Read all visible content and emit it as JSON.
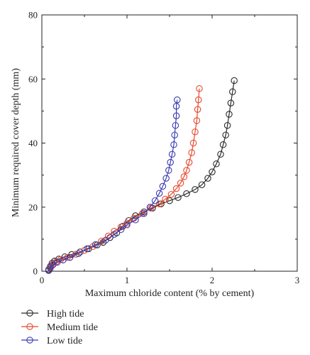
{
  "chart_data": {
    "type": "scatter",
    "xlabel": "Maximum chloride content (% by cement)",
    "ylabel": "Minimum required cover depth (mm)",
    "xlim": [
      0,
      3
    ],
    "ylim": [
      0,
      80
    ],
    "xticks": [
      0,
      1,
      2,
      3
    ],
    "yticks": [
      0,
      20,
      40,
      60,
      80
    ],
    "grid": false,
    "legend": "bottom-left",
    "series": [
      {
        "name": "High tide",
        "color": "#2b2b2b",
        "points": [
          [
            0.08,
            0.5
          ],
          [
            0.1,
            1.5
          ],
          [
            0.12,
            2.5
          ],
          [
            0.15,
            3.2
          ],
          [
            0.2,
            3.8
          ],
          [
            0.27,
            4.5
          ],
          [
            0.35,
            5.2
          ],
          [
            0.45,
            6.0
          ],
          [
            0.55,
            7.0
          ],
          [
            0.65,
            8.2
          ],
          [
            0.72,
            9.0
          ],
          [
            0.8,
            10.5
          ],
          [
            0.88,
            12.0
          ],
          [
            0.95,
            14.0
          ],
          [
            1.02,
            15.8
          ],
          [
            1.1,
            17.3
          ],
          [
            1.2,
            18.5
          ],
          [
            1.3,
            19.7
          ],
          [
            1.4,
            21.0
          ],
          [
            1.5,
            22.0
          ],
          [
            1.6,
            23.0
          ],
          [
            1.7,
            24.2
          ],
          [
            1.8,
            25.5
          ],
          [
            1.88,
            27.0
          ],
          [
            1.95,
            29.0
          ],
          [
            2.0,
            31.0
          ],
          [
            2.05,
            33.5
          ],
          [
            2.1,
            36.5
          ],
          [
            2.13,
            39.5
          ],
          [
            2.16,
            42.5
          ],
          [
            2.18,
            45.5
          ],
          [
            2.2,
            49.0
          ],
          [
            2.22,
            52.5
          ],
          [
            2.24,
            56.0
          ],
          [
            2.26,
            59.5
          ]
        ]
      },
      {
        "name": "Medium tide",
        "color": "#e8492e",
        "points": [
          [
            0.08,
            0.3
          ],
          [
            0.1,
            1.2
          ],
          [
            0.13,
            2.2
          ],
          [
            0.17,
            3.0
          ],
          [
            0.22,
            3.6
          ],
          [
            0.3,
            4.3
          ],
          [
            0.4,
            5.3
          ],
          [
            0.5,
            6.5
          ],
          [
            0.6,
            7.7
          ],
          [
            0.7,
            9.4
          ],
          [
            0.78,
            11.0
          ],
          [
            0.85,
            12.5
          ],
          [
            0.93,
            13.8
          ],
          [
            1.0,
            15.0
          ],
          [
            1.08,
            16.5
          ],
          [
            1.18,
            18.0
          ],
          [
            1.28,
            19.7
          ],
          [
            1.38,
            21.0
          ],
          [
            1.45,
            22.5
          ],
          [
            1.52,
            24.0
          ],
          [
            1.58,
            25.8
          ],
          [
            1.63,
            27.5
          ],
          [
            1.67,
            29.5
          ],
          [
            1.7,
            31.5
          ],
          [
            1.73,
            34.0
          ],
          [
            1.76,
            37.0
          ],
          [
            1.78,
            40.0
          ],
          [
            1.8,
            43.5
          ],
          [
            1.82,
            47.0
          ],
          [
            1.83,
            50.5
          ],
          [
            1.84,
            53.5
          ],
          [
            1.85,
            57.0
          ]
        ]
      },
      {
        "name": "Low tide",
        "color": "#3c3cb4",
        "points": [
          [
            0.08,
            0.2
          ],
          [
            0.1,
            1.0
          ],
          [
            0.13,
            2.0
          ],
          [
            0.18,
            2.8
          ],
          [
            0.25,
            3.5
          ],
          [
            0.33,
            4.3
          ],
          [
            0.43,
            5.5
          ],
          [
            0.53,
            7.0
          ],
          [
            0.63,
            8.3
          ],
          [
            0.75,
            9.7
          ],
          [
            0.85,
            11.5
          ],
          [
            0.93,
            13.0
          ],
          [
            1.0,
            14.5
          ],
          [
            1.1,
            16.0
          ],
          [
            1.2,
            18.0
          ],
          [
            1.27,
            20.0
          ],
          [
            1.33,
            22.0
          ],
          [
            1.38,
            24.3
          ],
          [
            1.42,
            26.5
          ],
          [
            1.46,
            29.0
          ],
          [
            1.49,
            31.5
          ],
          [
            1.51,
            34.0
          ],
          [
            1.53,
            36.5
          ],
          [
            1.55,
            39.5
          ],
          [
            1.56,
            42.5
          ],
          [
            1.57,
            45.5
          ],
          [
            1.58,
            48.5
          ],
          [
            1.58,
            51.5
          ],
          [
            1.59,
            53.5
          ]
        ]
      }
    ]
  }
}
